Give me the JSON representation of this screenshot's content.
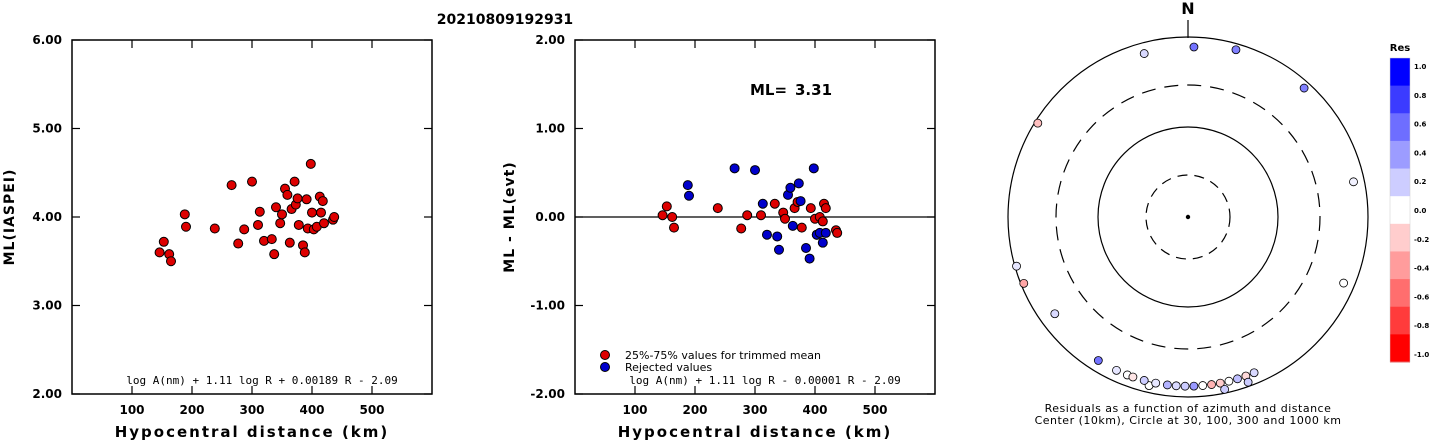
{
  "title": "20210809192931",
  "chart_data": [
    {
      "type": "scatter",
      "xlabel": "Hypocentral distance (km)",
      "ylabel": "ML(IASPEI)",
      "xlim": [
        0,
        600
      ],
      "ylim": [
        2.0,
        6.0
      ],
      "xticks": [
        "100",
        "200",
        "300",
        "400",
        "500"
      ],
      "yticks": [
        "2.00",
        "3.00",
        "4.00",
        "5.00",
        "6.00"
      ],
      "formula": "log A(nm) + 1.11 log R + 0.00189 R - 2.09",
      "points": [
        [
          146,
          3.6
        ],
        [
          153,
          3.72
        ],
        [
          162,
          3.58
        ],
        [
          165,
          3.5
        ],
        [
          188,
          4.03
        ],
        [
          190,
          3.89
        ],
        [
          238,
          3.87
        ],
        [
          266,
          4.36
        ],
        [
          277,
          3.7
        ],
        [
          287,
          3.86
        ],
        [
          300,
          4.4
        ],
        [
          310,
          3.91
        ],
        [
          313,
          4.06
        ],
        [
          320,
          3.73
        ],
        [
          333,
          3.75
        ],
        [
          337,
          3.58
        ],
        [
          340,
          4.11
        ],
        [
          347,
          3.93
        ],
        [
          350,
          4.03
        ],
        [
          355,
          4.32
        ],
        [
          359,
          4.25
        ],
        [
          363,
          3.71
        ],
        [
          366,
          4.09
        ],
        [
          371,
          4.4
        ],
        [
          373,
          4.14
        ],
        [
          376,
          4.21
        ],
        [
          378,
          3.91
        ],
        [
          385,
          3.68
        ],
        [
          388,
          3.6
        ],
        [
          391,
          4.2
        ],
        [
          393,
          3.87
        ],
        [
          398,
          4.6
        ],
        [
          400,
          4.05
        ],
        [
          403,
          3.86
        ],
        [
          408,
          3.89
        ],
        [
          413,
          4.23
        ],
        [
          415,
          4.05
        ],
        [
          418,
          4.18
        ],
        [
          420,
          3.93
        ],
        [
          435,
          3.97
        ],
        [
          437,
          4.0
        ]
      ]
    },
    {
      "type": "scatter",
      "xlabel": "Hypocentral distance (km)",
      "ylabel": "ML - ML(evt)",
      "xlim": [
        0,
        600
      ],
      "ylim": [
        -2.0,
        2.0
      ],
      "xticks": [
        "100",
        "200",
        "300",
        "400",
        "500"
      ],
      "yticks": [
        "-2.00",
        "-1.00",
        "0.00",
        "1.00",
        "2.00"
      ],
      "annotation_label": "ML= ",
      "annotation_value": "3.31",
      "formula": "log A(nm) + 1.11 log R - 0.00001 R - 2.09",
      "series": [
        {
          "name": "25%-75% values for trimmed mean",
          "color": "#dd0000",
          "points": [
            [
              146,
              0.02
            ],
            [
              153,
              0.12
            ],
            [
              162,
              0.0
            ],
            [
              165,
              -0.12
            ],
            [
              238,
              0.1
            ],
            [
              277,
              -0.13
            ],
            [
              287,
              0.02
            ],
            [
              310,
              0.02
            ],
            [
              333,
              0.15
            ],
            [
              347,
              0.05
            ],
            [
              350,
              -0.02
            ],
            [
              366,
              0.1
            ],
            [
              371,
              0.17
            ],
            [
              378,
              -0.12
            ],
            [
              393,
              0.1
            ],
            [
              400,
              -0.02
            ],
            [
              403,
              -0.2
            ],
            [
              408,
              0.0
            ],
            [
              413,
              -0.05
            ],
            [
              415,
              0.15
            ],
            [
              418,
              0.1
            ],
            [
              435,
              -0.15
            ],
            [
              437,
              -0.18
            ]
          ]
        },
        {
          "name": "Rejected values",
          "color": "#0000cc",
          "points": [
            [
              188,
              0.36
            ],
            [
              190,
              0.24
            ],
            [
              266,
              0.55
            ],
            [
              300,
              0.53
            ],
            [
              313,
              0.15
            ],
            [
              320,
              -0.2
            ],
            [
              337,
              -0.22
            ],
            [
              340,
              -0.37
            ],
            [
              355,
              0.25
            ],
            [
              359,
              0.33
            ],
            [
              363,
              -0.1
            ],
            [
              373,
              0.38
            ],
            [
              376,
              0.18
            ],
            [
              385,
              -0.35
            ],
            [
              391,
              -0.47
            ],
            [
              398,
              0.55
            ],
            [
              403,
              -0.2
            ],
            [
              408,
              -0.18
            ],
            [
              413,
              -0.29
            ],
            [
              418,
              -0.18
            ]
          ]
        }
      ]
    },
    {
      "type": "polar-scatter",
      "north_label": "N",
      "caption_line1": "Residuals as a function of azimuth and distance",
      "caption_line2": "Center (10km), Circle at 30, 100, 300 and 1000 km",
      "rings_km": [
        30,
        100,
        300,
        1000
      ],
      "colorbar": {
        "title": "Res",
        "ticks": [
          "1.0",
          "0.8",
          "0.6",
          "0.4",
          "0.2",
          "0.0",
          "-0.2",
          "-0.4",
          "-0.6",
          "-0.8",
          "-1.0"
        ],
        "colors": [
          "#0000ff",
          "#3b3bff",
          "#6e6eff",
          "#9c9cff",
          "#cdcdff",
          "#ffffff",
          "#ffcdcd",
          "#ff9c9c",
          "#ff6e6e",
          "#ff3b3b",
          "#ff0000"
        ]
      },
      "stations": [
        {
          "az": 345,
          "dist": 1000,
          "res": 0.15
        },
        {
          "az": 2,
          "dist": 780,
          "res": 0.55
        },
        {
          "az": 16,
          "dist": 860,
          "res": 0.5
        },
        {
          "az": 42,
          "dist": 850,
          "res": 0.5
        },
        {
          "az": 78,
          "dist": 1000,
          "res": 0.05
        },
        {
          "az": 302,
          "dist": 930,
          "res": -0.25
        },
        {
          "az": 254,
          "dist": 960,
          "res": 0.1
        },
        {
          "az": 248,
          "dist": 930,
          "res": -0.35
        },
        {
          "az": 234,
          "dist": 680,
          "res": 0.15
        },
        {
          "az": 113,
          "dist": 760,
          "res": 0.0
        },
        {
          "az": 193,
          "dist": 840,
          "res": 0.0
        },
        {
          "az": 212,
          "dist": 1000,
          "res": 0.55
        },
        {
          "az": 195,
          "dist": 1000,
          "res": 0.2
        },
        {
          "az": 191,
          "dist": 1000,
          "res": 0.1
        },
        {
          "az": 187,
          "dist": 1000,
          "res": 0.3
        },
        {
          "az": 184,
          "dist": 1000,
          "res": 0.15
        },
        {
          "az": 181,
          "dist": 1000,
          "res": 0.2
        },
        {
          "az": 178,
          "dist": 1000,
          "res": 0.4
        },
        {
          "az": 175,
          "dist": 1000,
          "res": 0.0
        },
        {
          "az": 172,
          "dist": 1000,
          "res": -0.3
        },
        {
          "az": 169,
          "dist": 1000,
          "res": -0.2
        },
        {
          "az": 166,
          "dist": 1000,
          "res": 0.0
        },
        {
          "az": 163,
          "dist": 1000,
          "res": 0.25
        },
        {
          "az": 160,
          "dist": 1000,
          "res": -0.15
        },
        {
          "az": 157,
          "dist": 1000,
          "res": 0.15
        },
        {
          "az": 160,
          "dist": 900,
          "res": 0.2
        },
        {
          "az": 168,
          "dist": 910,
          "res": 0.2
        },
        {
          "az": 201,
          "dist": 1000,
          "res": 0.0
        },
        {
          "az": 199,
          "dist": 1000,
          "res": -0.1
        },
        {
          "az": 205,
          "dist": 1000,
          "res": 0.1
        }
      ]
    }
  ]
}
